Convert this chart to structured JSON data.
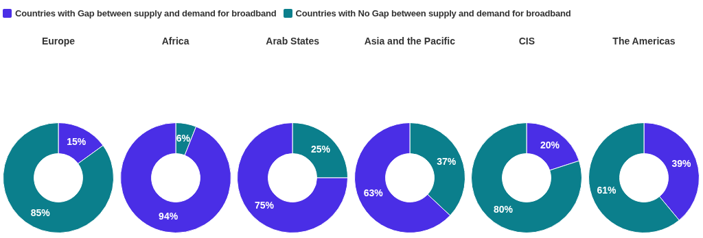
{
  "chart_data": [
    {
      "type": "donut",
      "title": "Europe",
      "legend": "top",
      "categories": [
        "Countries with Gap between supply and demand for broadband",
        "Countries with No Gap between supply and demand for broadband"
      ],
      "values": [
        15,
        85
      ],
      "colors": [
        "#4a2ee6",
        "#0b7f8c"
      ],
      "value_labels": [
        "15%",
        "85%"
      ]
    },
    {
      "type": "donut",
      "title": "Africa",
      "categories": [
        null,
        null
      ],
      "values": [
        6,
        94
      ],
      "colors": [
        "#0b7f8c",
        "#4a2ee6"
      ],
      "value_labels": [
        "6%",
        "94%"
      ]
    },
    {
      "type": "donut",
      "title": "Arab States",
      "categories": [
        null,
        null
      ],
      "values": [
        25,
        75
      ],
      "colors": [
        "#0b7f8c",
        "#4a2ee6"
      ],
      "value_labels": [
        "25%",
        "75%"
      ]
    },
    {
      "type": "donut",
      "title": "Asia and the Pacific",
      "categories": [
        null,
        null
      ],
      "values": [
        37,
        63
      ],
      "colors": [
        "#0b7f8c",
        "#4a2ee6"
      ],
      "value_labels": [
        "37%",
        "63%"
      ]
    },
    {
      "type": "donut",
      "title": "CIS",
      "categories": [
        null,
        null
      ],
      "values": [
        20,
        80
      ],
      "colors": [
        "#4a2ee6",
        "#0b7f8c"
      ],
      "value_labels": [
        "20%",
        "80%"
      ]
    },
    {
      "type": "donut",
      "title": "The Americas",
      "categories": [
        null,
        null
      ],
      "values": [
        39,
        61
      ],
      "colors": [
        "#4a2ee6",
        "#0b7f8c"
      ],
      "value_labels": [
        "39%",
        "61%"
      ]
    }
  ]
}
